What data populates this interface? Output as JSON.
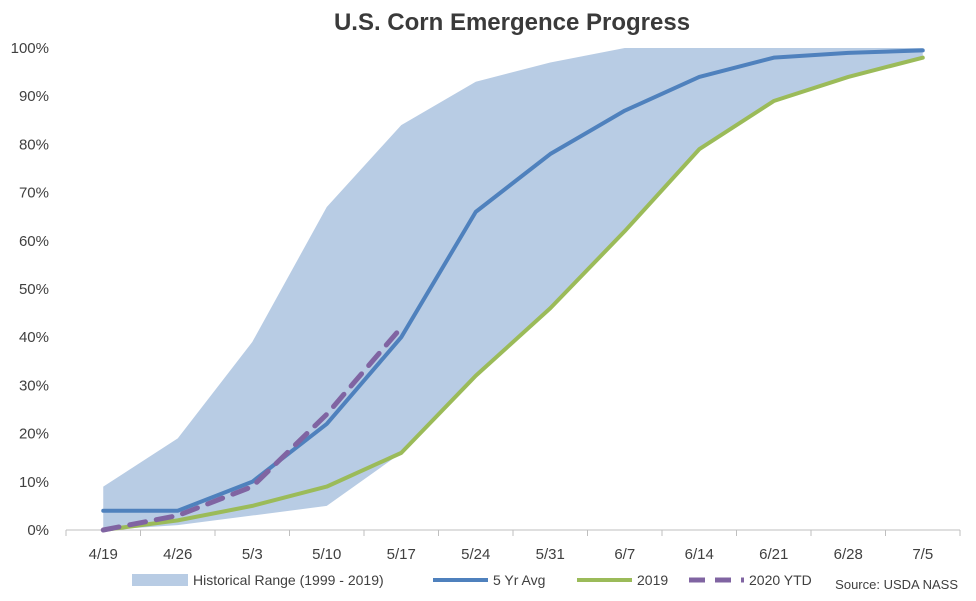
{
  "chart_data": {
    "type": "line",
    "title": "U.S. Corn Emergence Progress",
    "source": "Source: USDA NASS",
    "categories": [
      "4/19",
      "4/26",
      "5/3",
      "5/10",
      "5/17",
      "5/24",
      "5/31",
      "6/7",
      "6/14",
      "6/21",
      "6/28",
      "7/5"
    ],
    "ylim": [
      0,
      100
    ],
    "yticks": [
      0,
      10,
      20,
      30,
      40,
      50,
      60,
      70,
      80,
      90,
      100
    ],
    "ytick_labels": [
      "0%",
      "10%",
      "20%",
      "30%",
      "40%",
      "50%",
      "60%",
      "70%",
      "80%",
      "90%",
      "100%"
    ],
    "grid": false,
    "legend_position": "bottom",
    "range": {
      "name": "Historical Range (1999 - 2019)",
      "low": [
        0,
        1,
        3,
        5,
        16,
        32,
        46,
        62,
        79,
        89,
        94,
        98
      ],
      "high": [
        9,
        19,
        39,
        67,
        84,
        93,
        97,
        100,
        100,
        100,
        100,
        100
      ],
      "color": "#b8cce4"
    },
    "series": [
      {
        "name": "5 Yr Avg",
        "color": "#4f81bd",
        "dash": false,
        "values": [
          4,
          4,
          10,
          22,
          40,
          66,
          78,
          87,
          94,
          98,
          99,
          99.5
        ]
      },
      {
        "name": "2019",
        "color": "#9bbb59",
        "dash": false,
        "values": [
          0,
          2,
          5,
          9,
          16,
          32,
          46,
          62,
          79,
          89,
          94,
          98
        ]
      },
      {
        "name": "2020 YTD",
        "color": "#8064a2",
        "dash": true,
        "values": [
          0,
          3,
          9,
          24,
          42,
          null,
          null,
          null,
          null,
          null,
          null,
          null
        ]
      }
    ]
  }
}
